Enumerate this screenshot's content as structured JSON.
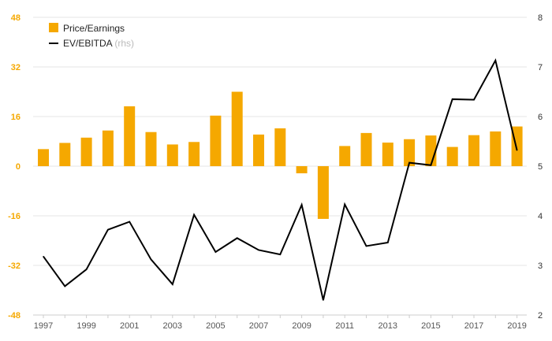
{
  "chart_data": {
    "type": "bar+line",
    "x": [
      1997,
      1998,
      1999,
      2000,
      2001,
      2002,
      2003,
      2004,
      2005,
      2006,
      2007,
      2008,
      2009,
      2010,
      2011,
      2012,
      2013,
      2014,
      2015,
      2016,
      2017,
      2018,
      2019
    ],
    "x_tick_labels": [
      "1997",
      "1999",
      "2001",
      "2003",
      "2005",
      "2007",
      "2009",
      "2011",
      "2013",
      "2015",
      "2017",
      "2019"
    ],
    "series": [
      {
        "name": "Price/Earnings",
        "type": "bar",
        "axis": "left",
        "color": "#f5a800",
        "values": [
          5.5,
          7.5,
          9.2,
          11.5,
          19.3,
          11.0,
          7.0,
          7.8,
          16.3,
          24.0,
          10.2,
          12.2,
          -2.3,
          -17.0,
          6.5,
          10.7,
          7.6,
          8.7,
          9.9,
          6.2,
          10.0,
          11.2,
          12.8
        ]
      },
      {
        "name": "EV/EBITDA",
        "name_suffix": "(rhs)",
        "type": "line",
        "axis": "right",
        "color": "#000000",
        "values": [
          3.18,
          2.58,
          2.92,
          3.72,
          3.88,
          3.12,
          2.62,
          4.02,
          3.27,
          3.55,
          3.31,
          3.22,
          4.22,
          2.3,
          4.23,
          3.39,
          3.46,
          5.07,
          5.02,
          6.35,
          6.34,
          7.13,
          5.32
        ]
      }
    ],
    "left_axis": {
      "ticks": [
        "48",
        "32",
        "16",
        "0",
        "-16",
        "-32",
        "-48"
      ],
      "ylim": [
        -48,
        48
      ]
    },
    "right_axis": {
      "ticks": [
        "8",
        "7",
        "6",
        "5",
        "4",
        "3",
        "2"
      ],
      "ylim": [
        2,
        8
      ]
    },
    "grid": true,
    "legend_position": "top-left"
  }
}
